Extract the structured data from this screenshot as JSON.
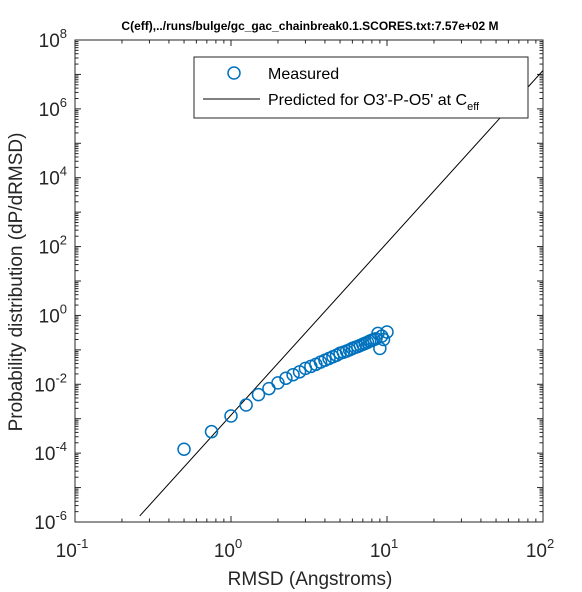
{
  "chart_data": {
    "type": "scatter",
    "title": "C(eff),../runs/bulge/gc_gac_chainbreak0.1.SCORES.txt:7.57e+02 M",
    "xlabel": "RMSD (Angstroms)",
    "ylabel": "Probability distribution (dP/dRMSD)",
    "xscale": "log",
    "yscale": "log",
    "xlim": [
      0.1,
      100
    ],
    "ylim": [
      1e-06,
      100000000
    ],
    "grid": false,
    "legend_position": "top-right",
    "x_ticks": [
      {
        "base": "10",
        "exp": "-1"
      },
      {
        "base": "10",
        "exp": "0"
      },
      {
        "base": "10",
        "exp": "1"
      },
      {
        "base": "10",
        "exp": "2"
      }
    ],
    "y_ticks": [
      {
        "base": "10",
        "exp": "-6"
      },
      {
        "base": "10",
        "exp": "-4"
      },
      {
        "base": "10",
        "exp": "-2"
      },
      {
        "base": "10",
        "exp": "0"
      },
      {
        "base": "10",
        "exp": "2"
      },
      {
        "base": "10",
        "exp": "4"
      },
      {
        "base": "10",
        "exp": "6"
      },
      {
        "base": "10",
        "exp": "8"
      }
    ],
    "series": [
      {
        "name": "Measured",
        "style": "markers",
        "marker": "circle",
        "color": "#0072BD",
        "points": [
          {
            "x": 0.5,
            "y": 0.00013
          },
          {
            "x": 0.75,
            "y": 0.00042
          },
          {
            "x": 1.0,
            "y": 0.0012
          },
          {
            "x": 1.25,
            "y": 0.0025
          },
          {
            "x": 1.5,
            "y": 0.005
          },
          {
            "x": 1.75,
            "y": 0.0075
          },
          {
            "x": 2.0,
            "y": 0.011
          },
          {
            "x": 2.25,
            "y": 0.015
          },
          {
            "x": 2.5,
            "y": 0.019
          },
          {
            "x": 2.75,
            "y": 0.023
          },
          {
            "x": 3.0,
            "y": 0.029
          },
          {
            "x": 3.25,
            "y": 0.033
          },
          {
            "x": 3.5,
            "y": 0.038
          },
          {
            "x": 3.75,
            "y": 0.044
          },
          {
            "x": 4.0,
            "y": 0.05
          },
          {
            "x": 4.25,
            "y": 0.056
          },
          {
            "x": 4.5,
            "y": 0.063
          },
          {
            "x": 4.75,
            "y": 0.07
          },
          {
            "x": 5.0,
            "y": 0.08
          },
          {
            "x": 5.25,
            "y": 0.085
          },
          {
            "x": 5.5,
            "y": 0.092
          },
          {
            "x": 5.75,
            "y": 0.1
          },
          {
            "x": 6.0,
            "y": 0.11
          },
          {
            "x": 6.25,
            "y": 0.118
          },
          {
            "x": 6.5,
            "y": 0.125
          },
          {
            "x": 6.75,
            "y": 0.135
          },
          {
            "x": 7.0,
            "y": 0.145
          },
          {
            "x": 7.25,
            "y": 0.155
          },
          {
            "x": 7.5,
            "y": 0.165
          },
          {
            "x": 7.75,
            "y": 0.18
          },
          {
            "x": 8.0,
            "y": 0.19
          },
          {
            "x": 8.25,
            "y": 0.2
          },
          {
            "x": 8.5,
            "y": 0.21
          },
          {
            "x": 8.75,
            "y": 0.3
          },
          {
            "x": 9.0,
            "y": 0.11
          },
          {
            "x": 9.25,
            "y": 0.25
          },
          {
            "x": 9.5,
            "y": 0.2
          },
          {
            "x": 10.0,
            "y": 0.33
          }
        ]
      },
      {
        "name": "Predicted for O3'-P-O5' at C",
        "name_subscript": "eff",
        "style": "line",
        "color": "#000000",
        "points": [
          {
            "x": 0.26,
            "y": 1.5e-06
          },
          {
            "x": 100,
            "y": 13000000
          }
        ]
      }
    ]
  }
}
